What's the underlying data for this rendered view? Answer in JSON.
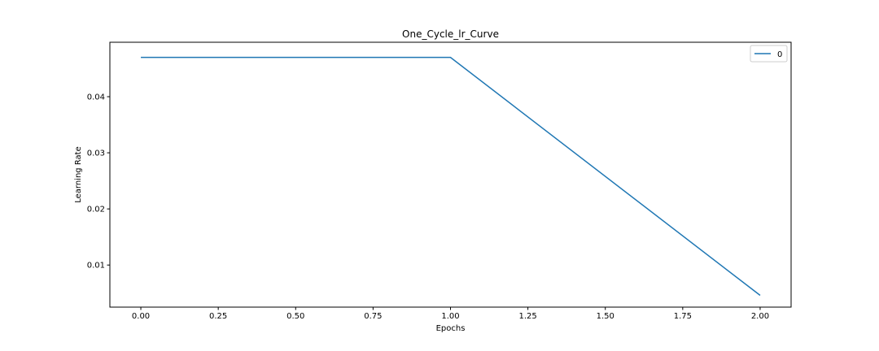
{
  "chart_data": {
    "type": "line",
    "title": "One_Cycle_lr_Curve",
    "xlabel": "Epochs",
    "ylabel": "Learning Rate",
    "xlim": [
      -0.1,
      2.1
    ],
    "ylim": [
      0.0025,
      0.0497
    ],
    "xticks": [
      0.0,
      0.25,
      0.5,
      0.75,
      1.0,
      1.25,
      1.5,
      1.75,
      2.0
    ],
    "xtick_labels": [
      "0.00",
      "0.25",
      "0.50",
      "0.75",
      "1.00",
      "1.25",
      "1.50",
      "1.75",
      "2.00"
    ],
    "yticks": [
      0.01,
      0.02,
      0.03,
      0.04
    ],
    "ytick_labels": [
      "0.01",
      "0.02",
      "0.03",
      "0.04"
    ],
    "grid": false,
    "legend_position": "top-right",
    "series": [
      {
        "name": "0",
        "color": "#1f77b4",
        "x": [
          0.0,
          1.0,
          2.0
        ],
        "y": [
          0.047,
          0.047,
          0.0046
        ]
      }
    ]
  }
}
